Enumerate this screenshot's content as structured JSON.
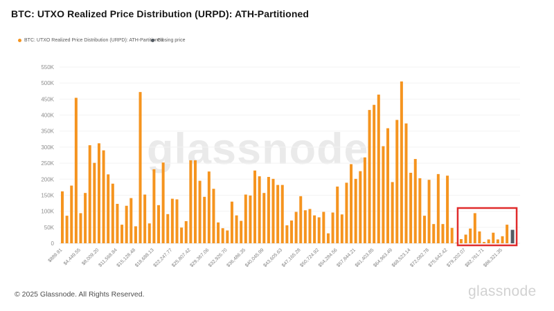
{
  "header": {
    "title": "BTC: UTXO Realized Price Distribution (URPD): ATH-Partitioned"
  },
  "legend": [
    {
      "label": "BTC: UTXO Realized Price Distribution (URPD): ATH-Partitioned",
      "color": "#f5941f"
    },
    {
      "label": "Closing price",
      "color": "#545b63"
    }
  ],
  "watermark": "glassnode",
  "footer": {
    "copyright": "© 2025 Glassnode. All Rights Reserved.",
    "logo": "glassnode"
  },
  "chart_data": {
    "type": "bar",
    "title": "BTC: UTXO Realized Price Distribution (URPD): ATH-Partitioned",
    "xlabel": "",
    "ylabel": "",
    "ylim": [
      0,
      550000
    ],
    "ytick_step": 50000,
    "ytick_labels": [
      "0",
      "50K",
      "100K",
      "150K",
      "200K",
      "250K",
      "300K",
      "350K",
      "400K",
      "450K",
      "500K",
      "550K"
    ],
    "grid": "horizontal",
    "legend_position": "top-left",
    "bar_color": "#f5941f",
    "label_stride": 4,
    "x_labels": [
      "$889.91",
      "$4,449.55",
      "$8,009.20",
      "$11,568.84",
      "$15,128.48",
      "$18,688.13",
      "$22,247.77",
      "$25,807.42",
      "$29,367.06",
      "$32,926.70",
      "$36,486.35",
      "$40,045.99",
      "$43,605.63",
      "$47,165.28",
      "$50,724.92",
      "$54,284.56",
      "$57,844.21",
      "$61,403.85",
      "$64,963.49",
      "$68,523.14",
      "$72,082.78",
      "$75,642.42",
      "$79,202.07",
      "$82,761.71",
      "$86,321.35"
    ],
    "values": [
      162000,
      86000,
      180000,
      454000,
      94000,
      157000,
      306000,
      251000,
      312000,
      290000,
      215000,
      186000,
      123000,
      58000,
      117000,
      141000,
      53000,
      472000,
      152000,
      62000,
      231000,
      119000,
      252000,
      91000,
      139000,
      137000,
      49000,
      69000,
      259000,
      259000,
      195000,
      145000,
      224000,
      170000,
      65000,
      47000,
      40000,
      130000,
      87000,
      70000,
      152000,
      149000,
      227000,
      209000,
      157000,
      207000,
      201000,
      182000,
      182000,
      56000,
      71000,
      98000,
      147000,
      103000,
      107000,
      87000,
      81000,
      98000,
      31000,
      96000,
      177000,
      90000,
      189000,
      247000,
      201000,
      225000,
      268000,
      416000,
      432000,
      464000,
      303000,
      359000,
      191000,
      385000,
      505000,
      374000,
      220000,
      263000,
      203000,
      86000,
      198000,
      60000,
      216000,
      60000,
      211000,
      48000,
      2000,
      13000,
      27000,
      46000,
      94000,
      37000,
      4000,
      12000,
      33000,
      12000,
      22000,
      58000
    ],
    "closing_price": {
      "label": "Closing price",
      "value": 42000,
      "color": "#545b63"
    },
    "highlight_box": {
      "start_bar": 87,
      "top_value": 110000,
      "color": "#e02b2b"
    }
  }
}
